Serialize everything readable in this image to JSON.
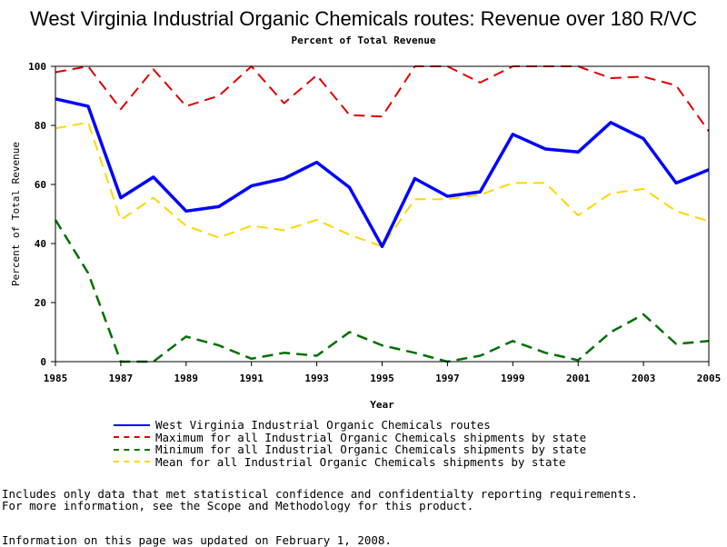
{
  "chart_data": {
    "type": "line",
    "title": "West Virginia Industrial Organic Chemicals routes: Revenue over 180 R/VC",
    "subtitle": "Percent of Total Revenue",
    "xlabel": "Year",
    "ylabel": "Percent of Total Revenue",
    "xlim": [
      1985,
      2005
    ],
    "ylim": [
      0,
      100
    ],
    "x_ticks": [
      1985,
      1987,
      1989,
      1991,
      1993,
      1995,
      1997,
      1999,
      2001,
      2003,
      2005
    ],
    "y_ticks": [
      0,
      20,
      40,
      60,
      80,
      100
    ],
    "x": [
      1985,
      1986,
      1987,
      1988,
      1989,
      1990,
      1991,
      1992,
      1993,
      1994,
      1995,
      1996,
      1997,
      1998,
      1999,
      2000,
      2001,
      2002,
      2003,
      2004,
      2005
    ],
    "legend_position": "bottom",
    "series": [
      {
        "name": "West Virginia Industrial Organic Chemicals routes",
        "color": "#0000ff",
        "style": "solid",
        "values": [
          89,
          86.5,
          55.5,
          62.5,
          51,
          52.5,
          59.5,
          62,
          67.5,
          59,
          39,
          62,
          56,
          57.5,
          77,
          72,
          71,
          81,
          75.5,
          60.5,
          65
        ]
      },
      {
        "name": "Maximum for all Industrial Organic Chemicals shipments by state",
        "color": "#e00000",
        "style": "dashed",
        "values": [
          98,
          100,
          85.5,
          99,
          86.5,
          90,
          100,
          87.5,
          97,
          83.5,
          83,
          100,
          100,
          94.5,
          100,
          100,
          100,
          96,
          96.5,
          93.5,
          78
        ]
      },
      {
        "name": "Minimum for all Industrial Organic Chemicals shipments by state",
        "color": "#007000",
        "style": "dashed",
        "values": [
          48,
          30,
          0,
          0,
          8.5,
          5.5,
          1,
          3,
          2,
          10,
          5.5,
          3,
          0,
          2,
          7,
          3,
          0.5,
          10,
          16,
          6,
          7
        ]
      },
      {
        "name": "Mean for all Industrial Organic Chemicals shipments by state",
        "color": "#ffd700",
        "style": "dashed",
        "values": [
          79,
          81,
          48,
          55.5,
          46,
          42,
          46,
          44.5,
          48,
          43,
          39,
          55,
          55,
          56.5,
          60.5,
          60.5,
          49.5,
          57,
          58.5,
          51,
          47.5
        ]
      }
    ]
  },
  "footnotes": {
    "line1": "Includes only data that met statistical confidence and confidentialty reporting requirements.",
    "line2": "For more information, see the Scope and Methodology for this product.",
    "line3": "Information on this page was updated on February 1, 2008."
  }
}
